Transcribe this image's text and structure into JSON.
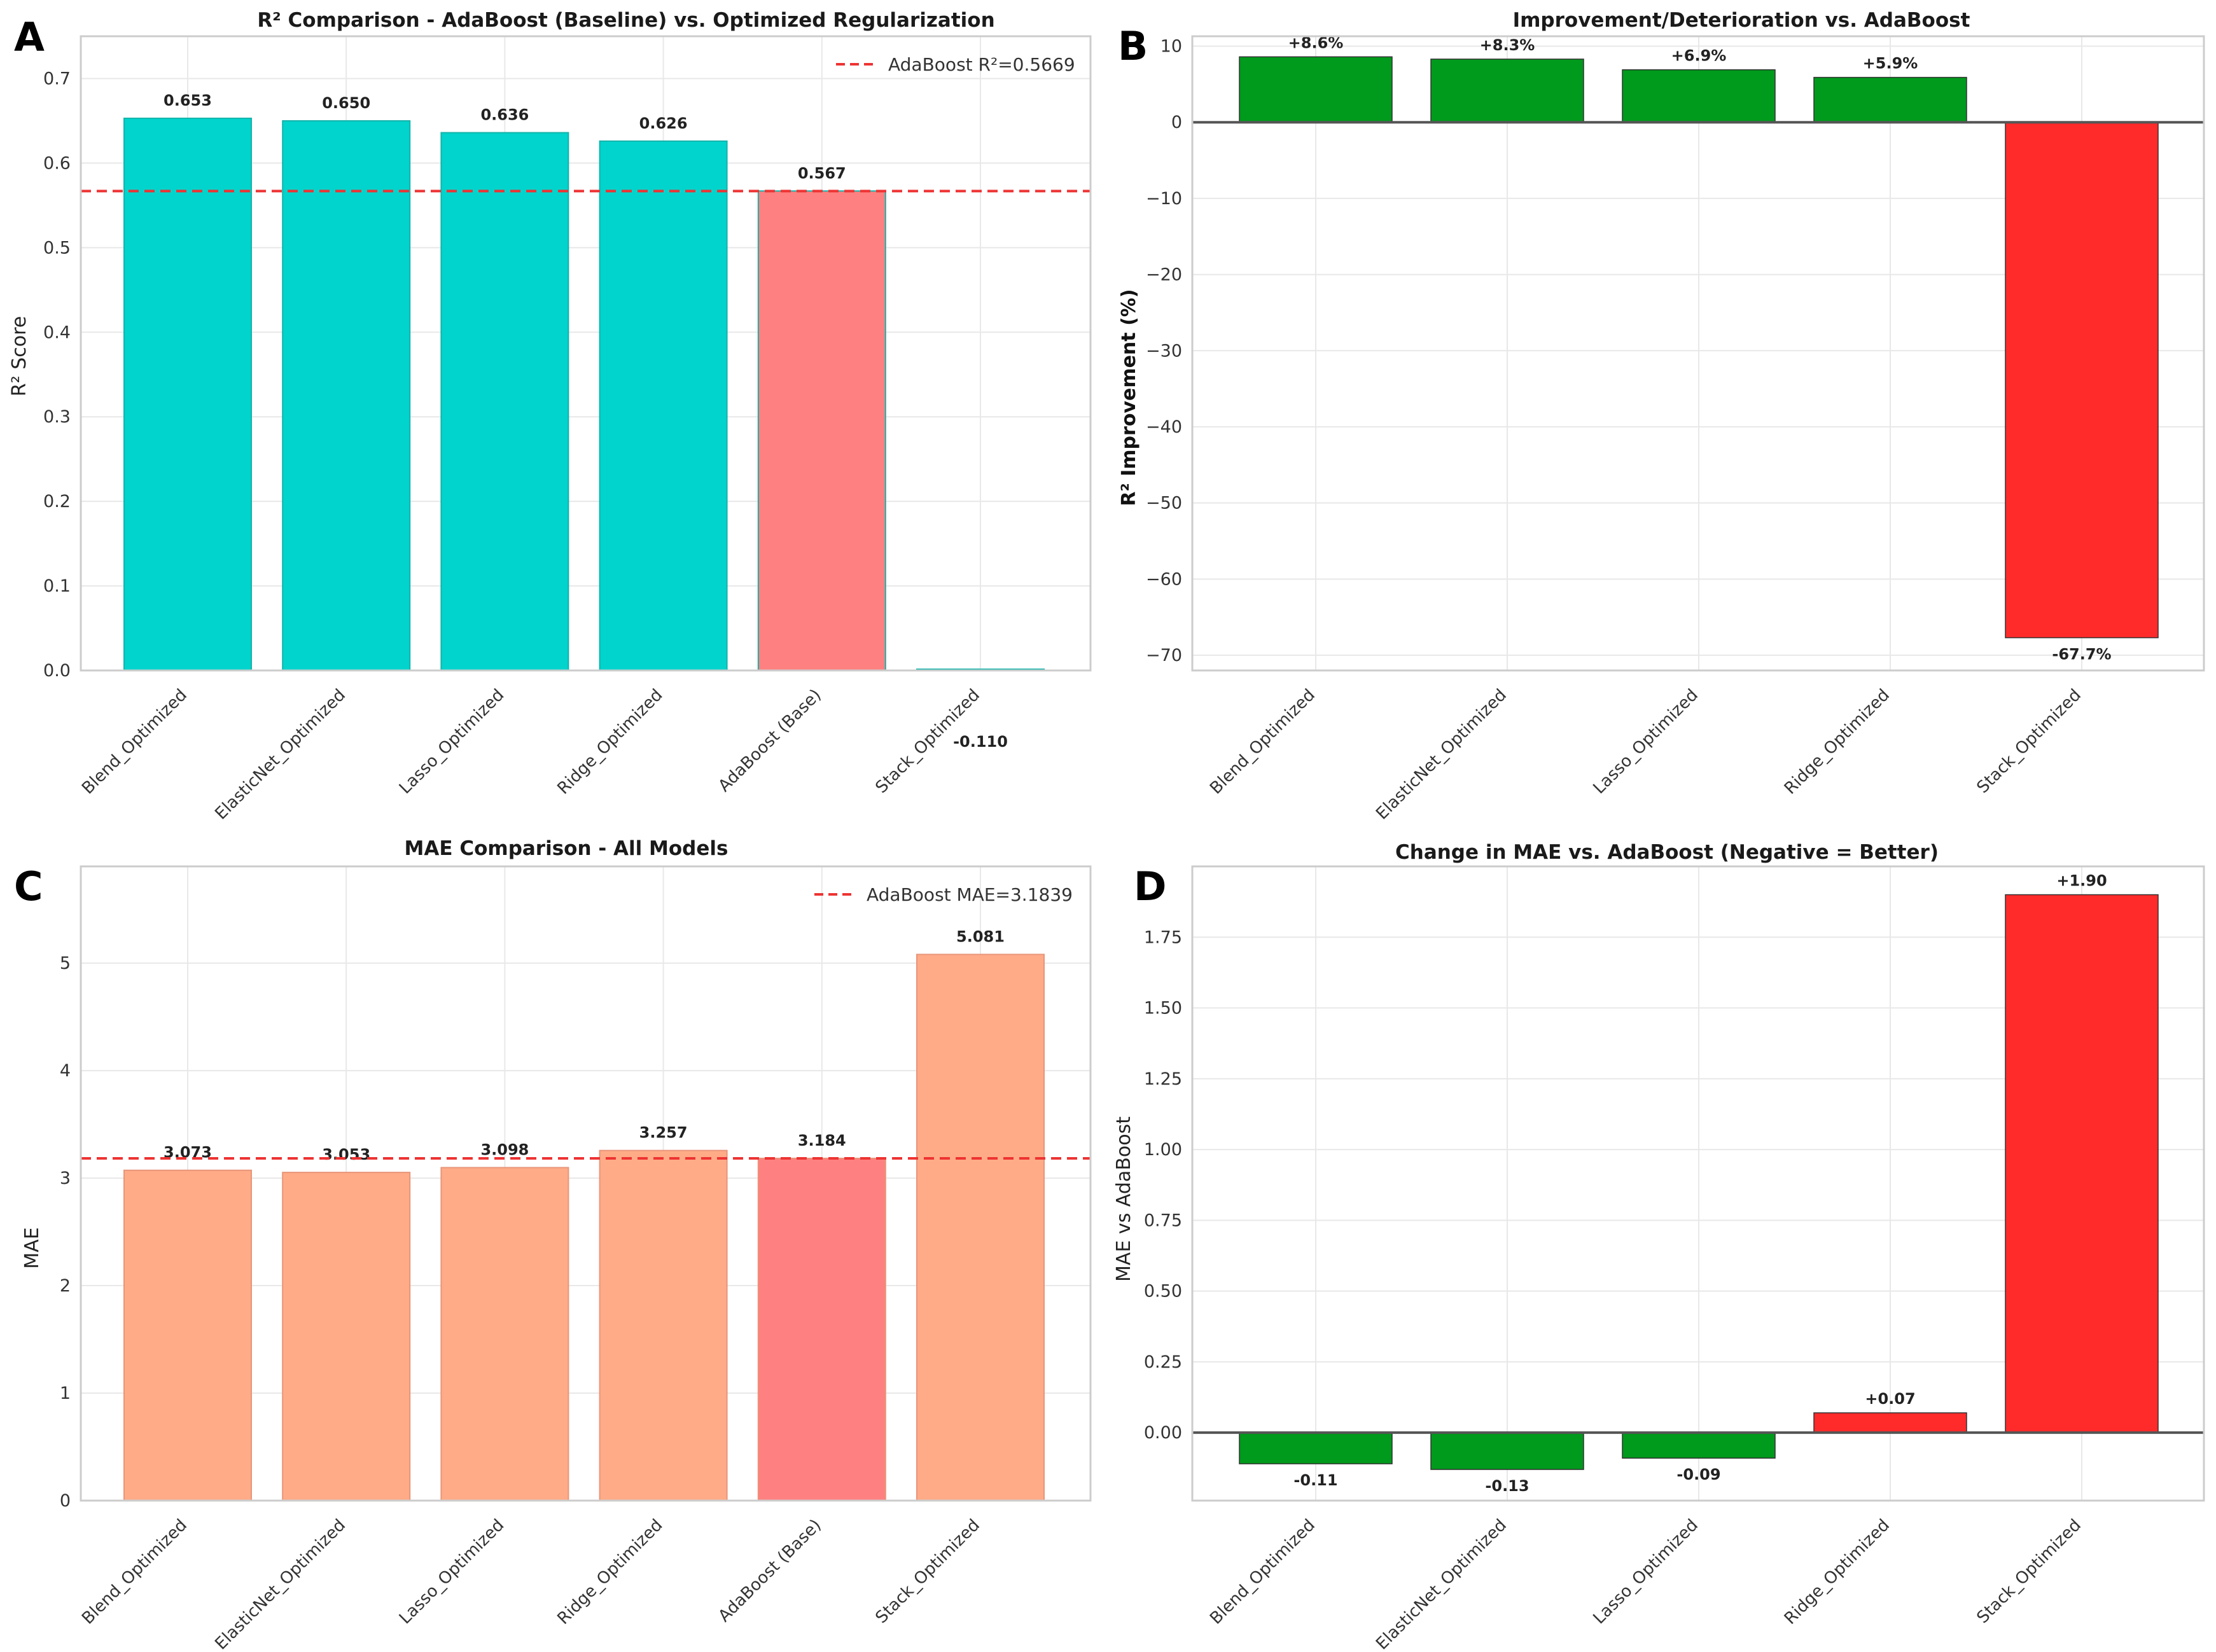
{
  "colors": {
    "r2_bar": "#00d4cc",
    "mae_bar": "#ffab87",
    "baseline_bar": "#ff8080",
    "positive": "#009a1c",
    "negative": "#ff2a2a",
    "ref_line": "#ee3333"
  },
  "chart_data": [
    {
      "id": "A",
      "type": "bar",
      "title": "R² Comparison - AdaBoost (Baseline) vs. Optimized Regularization",
      "xlabel": "",
      "ylabel": "R² Score",
      "categories": [
        "Blend_Optimized",
        "ElasticNet_Optimized",
        "Lasso_Optimized",
        "Ridge_Optimized",
        "AdaBoost (Base)",
        "Stack_Optimized"
      ],
      "values": [
        0.653,
        0.65,
        0.636,
        0.626,
        0.567,
        -0.11
      ],
      "value_labels": [
        "0.653",
        "0.650",
        "0.636",
        "0.626",
        "0.567",
        "-0.110"
      ],
      "highlight_index": 4,
      "ylim": [
        0,
        0.75
      ],
      "yticks": [
        0.0,
        0.1,
        0.2,
        0.3,
        0.4,
        0.5,
        0.6,
        0.7
      ],
      "ytick_labels": [
        "0.0",
        "0.1",
        "0.2",
        "0.3",
        "0.4",
        "0.5",
        "0.6",
        "0.7"
      ],
      "reference_line": {
        "value": 0.5669,
        "label": "AdaBoost R²=0.5669"
      },
      "legend": "top-right",
      "grid": true
    },
    {
      "id": "B",
      "type": "bar",
      "title": "Improvement/Deterioration vs. AdaBoost",
      "xlabel": "",
      "ylabel": "R² Improvement (%)",
      "categories": [
        "Blend_Optimized",
        "ElasticNet_Optimized",
        "Lasso_Optimized",
        "Ridge_Optimized",
        "Stack_Optimized"
      ],
      "values": [
        8.6,
        8.3,
        6.9,
        5.9,
        -67.7
      ],
      "value_labels": [
        "+8.6%",
        "+8.3%",
        "+6.9%",
        "+5.9%",
        "-67.7%"
      ],
      "ylim": [
        -72,
        11.3
      ],
      "yticks": [
        10,
        0,
        -10,
        -20,
        -30,
        -40,
        -50,
        -60,
        -70
      ],
      "ytick_labels": [
        "10",
        "0",
        "−10",
        "−20",
        "−30",
        "−40",
        "−50",
        "−60",
        "−70"
      ],
      "zero_line": true,
      "grid": true
    },
    {
      "id": "C",
      "type": "bar",
      "title": "MAE Comparison - All Models",
      "xlabel": "",
      "ylabel": "MAE",
      "categories": [
        "Blend_Optimized",
        "ElasticNet_Optimized",
        "Lasso_Optimized",
        "Ridge_Optimized",
        "AdaBoost (Base)",
        "Stack_Optimized"
      ],
      "values": [
        3.073,
        3.053,
        3.098,
        3.257,
        3.184,
        5.081
      ],
      "value_labels": [
        "3.073",
        "3.053",
        "3.098",
        "3.257",
        "3.184",
        "5.081"
      ],
      "highlight_index": 4,
      "ylim": [
        0,
        5.9
      ],
      "yticks": [
        0,
        1,
        2,
        3,
        4,
        5
      ],
      "ytick_labels": [
        "0",
        "1",
        "2",
        "3",
        "4",
        "5"
      ],
      "reference_line": {
        "value": 3.1839,
        "label": "AdaBoost MAE=3.1839"
      },
      "legend": "top-right",
      "grid": true
    },
    {
      "id": "D",
      "type": "bar",
      "title": "Change in MAE vs. AdaBoost (Negative = Better)",
      "xlabel": "",
      "ylabel": "MAE vs AdaBoost",
      "categories": [
        "Blend_Optimized",
        "ElasticNet_Optimized",
        "Lasso_Optimized",
        "Ridge_Optimized",
        "Stack_Optimized"
      ],
      "values": [
        -0.11,
        -0.13,
        -0.09,
        0.07,
        1.9
      ],
      "value_labels": [
        "-0.11",
        "-0.13",
        "-0.09",
        "+0.07",
        "+1.90"
      ],
      "ylim": [
        -0.24,
        2.0
      ],
      "yticks": [
        0.0,
        0.25,
        0.5,
        0.75,
        1.0,
        1.25,
        1.5,
        1.75
      ],
      "ytick_labels": [
        "0.00",
        "0.25",
        "0.50",
        "0.75",
        "1.00",
        "1.25",
        "1.50",
        "1.75"
      ],
      "zero_line": true,
      "grid": true
    }
  ]
}
